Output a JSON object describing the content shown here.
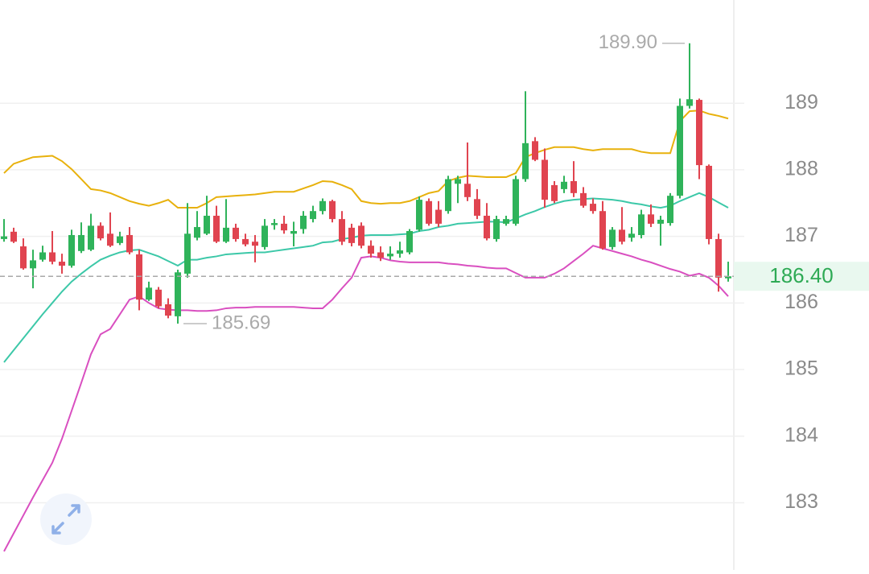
{
  "chart_data": {
    "type": "candlestick",
    "ylim": [
      181.99,
      190.55
    ],
    "yticks": [
      183,
      184,
      185,
      186,
      187,
      188,
      189
    ],
    "grid": true,
    "up_color": "#2fb35a",
    "down_color": "#e04450",
    "open": [
      186.96,
      187.07,
      186.85,
      186.52,
      186.65,
      186.76,
      186.62,
      186.56,
      186.78,
      186.8,
      187.16,
      187.04,
      186.9,
      187.02,
      186.73,
      186.05,
      186.2,
      185.98,
      185.8,
      186.44,
      186.98,
      187.04,
      187.31,
      186.92,
      187.13,
      186.96,
      186.92,
      186.84,
      187.17,
      187.19,
      187.04,
      187.11,
      187.26,
      187.38,
      187.53,
      187.26,
      187.13,
      187.16,
      186.86,
      186.76,
      186.7,
      186.74,
      186.76,
      187.1,
      187.53,
      187.4,
      187.38,
      187.79,
      187.79,
      187.56,
      187.31,
      186.96,
      187.19,
      187.19,
      187.86,
      188.43,
      188.15,
      187.77,
      187.71,
      187.83,
      187.65,
      187.49,
      187.38,
      186.84,
      187.1,
      186.98,
      187.02,
      187.33,
      187.19,
      187.2,
      187.61,
      188.96,
      189.05,
      188.06,
      186.96,
      186.37
    ],
    "high": [
      187.26,
      187.13,
      186.97,
      186.8,
      186.86,
      187.08,
      186.74,
      187.1,
      187.21,
      187.34,
      187.21,
      187.36,
      187.07,
      187.14,
      186.8,
      186.32,
      186.24,
      186.07,
      186.5,
      187.5,
      187.38,
      187.61,
      187.46,
      187.56,
      187.19,
      187.04,
      187.02,
      187.26,
      187.26,
      187.31,
      187.22,
      187.38,
      187.46,
      187.57,
      187.55,
      187.38,
      187.19,
      187.21,
      186.94,
      186.85,
      186.85,
      186.92,
      187.11,
      187.6,
      187.57,
      187.53,
      187.91,
      187.91,
      188.41,
      187.71,
      187.5,
      187.31,
      187.31,
      187.91,
      189.18,
      188.49,
      188.32,
      187.83,
      187.91,
      188.13,
      187.74,
      187.57,
      187.53,
      187.14,
      187.44,
      187.14,
      187.4,
      187.48,
      187.31,
      187.65,
      189.07,
      189.9,
      189.07,
      188.08,
      187.04,
      186.62
    ],
    "low": [
      186.92,
      186.9,
      186.5,
      186.22,
      186.62,
      186.58,
      186.44,
      186.53,
      186.75,
      186.78,
      186.94,
      186.84,
      186.87,
      186.73,
      185.89,
      186.03,
      185.92,
      185.77,
      185.69,
      186.38,
      186.94,
      187.02,
      186.9,
      186.9,
      186.92,
      186.85,
      186.61,
      186.8,
      187.1,
      187.04,
      186.85,
      187.04,
      187.21,
      187.33,
      187.21,
      186.87,
      186.85,
      186.82,
      186.68,
      186.63,
      186.65,
      186.68,
      186.73,
      187.07,
      187.16,
      187.14,
      187.34,
      187.5,
      187.53,
      187.26,
      186.94,
      186.92,
      187.16,
      187.16,
      187.82,
      188.13,
      187.43,
      187.5,
      187.65,
      187.59,
      187.43,
      187.34,
      186.8,
      186.8,
      186.88,
      186.92,
      186.97,
      187.14,
      186.86,
      187.16,
      187.57,
      188.92,
      187.86,
      186.88,
      186.17,
      186.32
    ],
    "close": [
      187.0,
      186.92,
      186.52,
      186.64,
      186.76,
      186.62,
      186.56,
      187.02,
      187.02,
      187.16,
      186.97,
      186.86,
      187.0,
      186.76,
      186.05,
      186.23,
      185.95,
      185.81,
      186.46,
      187.04,
      187.14,
      187.31,
      186.92,
      187.13,
      186.96,
      186.88,
      186.86,
      187.16,
      187.2,
      187.09,
      187.08,
      187.31,
      187.38,
      187.53,
      187.26,
      186.92,
      186.9,
      186.86,
      186.74,
      186.68,
      186.74,
      186.79,
      187.08,
      187.55,
      187.19,
      187.19,
      187.86,
      187.86,
      187.59,
      187.31,
      186.97,
      187.26,
      187.26,
      187.86,
      188.4,
      188.15,
      187.55,
      187.53,
      187.82,
      187.65,
      187.46,
      187.38,
      186.82,
      187.1,
      186.92,
      187.04,
      187.33,
      187.19,
      187.25,
      187.61,
      188.96,
      189.06,
      188.07,
      186.96,
      186.38,
      186.4
    ],
    "bands": [
      {
        "color": "#e8b10c",
        "values": [
          187.95,
          188.09,
          188.14,
          188.19,
          188.2,
          188.21,
          188.13,
          188.01,
          187.86,
          187.71,
          187.69,
          187.65,
          187.59,
          187.53,
          187.49,
          187.46,
          187.5,
          187.55,
          187.43,
          187.43,
          187.43,
          187.5,
          187.59,
          187.6,
          187.61,
          187.62,
          187.63,
          187.65,
          187.67,
          187.67,
          187.67,
          187.72,
          187.77,
          187.83,
          187.82,
          187.77,
          187.71,
          187.53,
          187.5,
          187.49,
          187.5,
          187.5,
          187.53,
          187.59,
          187.65,
          187.68,
          187.83,
          187.88,
          187.91,
          187.9,
          187.89,
          187.89,
          187.89,
          187.95,
          188.19,
          188.25,
          188.3,
          188.34,
          188.34,
          188.34,
          188.31,
          188.29,
          188.31,
          188.31,
          188.31,
          188.31,
          188.27,
          188.25,
          188.25,
          188.25,
          188.73,
          188.88,
          188.89,
          188.84,
          188.81,
          188.77
        ]
      },
      {
        "color": "#3cc8a8",
        "values": [
          185.11,
          185.29,
          185.47,
          185.65,
          185.83,
          186.0,
          186.17,
          186.32,
          186.44,
          186.55,
          186.65,
          186.71,
          186.76,
          186.79,
          186.8,
          186.75,
          186.7,
          186.63,
          186.56,
          186.65,
          186.65,
          186.68,
          186.7,
          186.73,
          186.74,
          186.75,
          186.76,
          186.76,
          186.78,
          186.8,
          186.82,
          186.84,
          186.86,
          186.91,
          186.92,
          186.96,
          186.98,
          187.01,
          187.02,
          187.02,
          187.02,
          187.03,
          187.04,
          187.08,
          187.1,
          187.14,
          187.16,
          187.19,
          187.2,
          187.21,
          187.22,
          187.22,
          187.21,
          187.27,
          187.33,
          187.38,
          187.44,
          187.49,
          187.53,
          187.55,
          187.56,
          187.57,
          187.56,
          187.55,
          187.53,
          187.5,
          187.48,
          187.45,
          187.43,
          187.46,
          187.53,
          187.59,
          187.65,
          187.59,
          187.51,
          187.43
        ]
      },
      {
        "color": "#d94fc0",
        "values": [
          182.27,
          182.54,
          182.81,
          183.08,
          183.34,
          183.6,
          183.96,
          184.38,
          184.8,
          185.23,
          185.53,
          185.61,
          185.83,
          186.05,
          186.1,
          186.0,
          185.92,
          185.9,
          185.89,
          185.89,
          185.88,
          185.88,
          185.89,
          185.92,
          185.93,
          185.93,
          185.94,
          185.94,
          185.94,
          185.94,
          185.94,
          185.93,
          185.92,
          185.92,
          186.05,
          186.22,
          186.38,
          186.68,
          186.7,
          186.68,
          186.64,
          186.62,
          186.61,
          186.61,
          186.61,
          186.61,
          186.59,
          186.58,
          186.56,
          186.55,
          186.53,
          186.52,
          186.52,
          186.45,
          186.38,
          186.38,
          186.38,
          186.44,
          186.52,
          186.63,
          186.74,
          186.86,
          186.82,
          186.78,
          186.74,
          186.7,
          186.65,
          186.61,
          186.56,
          186.51,
          186.47,
          186.41,
          186.44,
          186.38,
          186.26,
          186.1
        ]
      }
    ],
    "high_marker": {
      "value": 189.9,
      "label": "189.90"
    },
    "low_marker": 185.69,
    "last_price": {
      "value": 186.4,
      "label": "186.40"
    },
    "last_price_color": "#2eaa55"
  }
}
